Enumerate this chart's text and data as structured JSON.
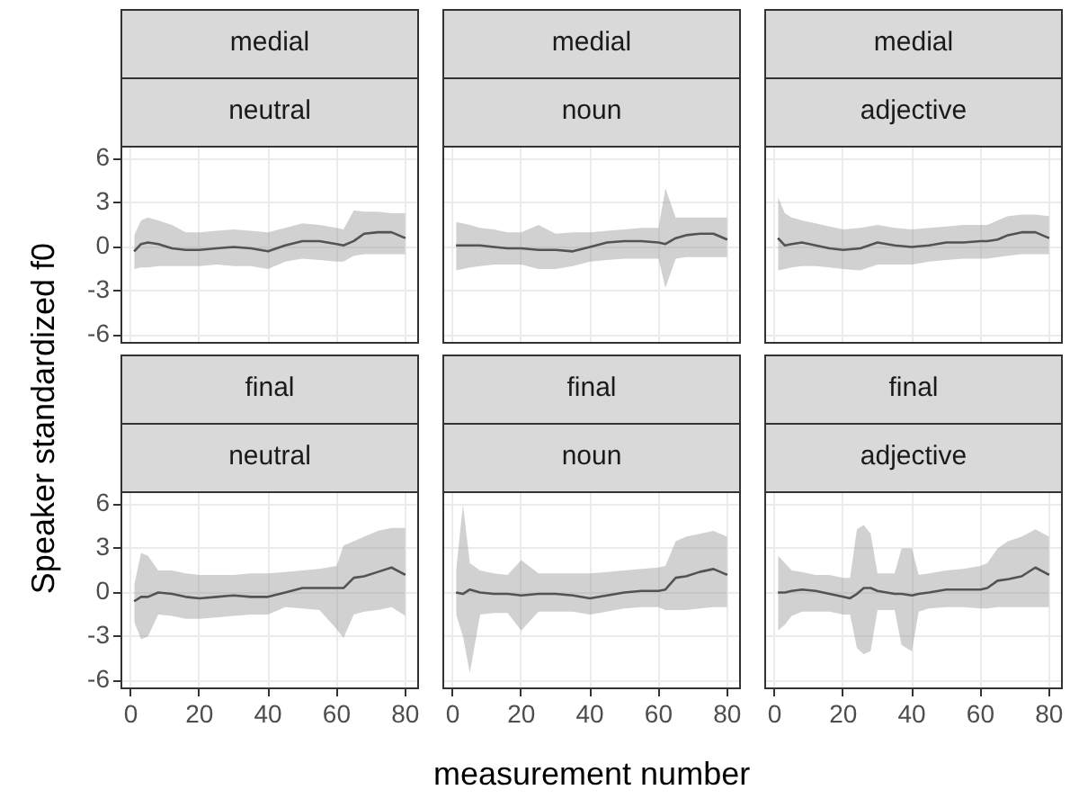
{
  "chart_data": [
    {
      "type": "line",
      "title": "medial",
      "subtitle": "neutral",
      "ylabel": "Speaker standardized f0",
      "x": [
        1,
        3,
        5,
        8,
        12,
        16,
        20,
        25,
        30,
        35,
        40,
        45,
        50,
        55,
        60,
        62,
        65,
        68,
        72,
        76,
        80
      ],
      "xlim": [
        -3,
        84
      ],
      "xticks": [
        0,
        20,
        40,
        60,
        80
      ],
      "ylim": [
        -6.6,
        6.9
      ],
      "yticks": [
        -6,
        -3,
        0,
        3,
        6
      ],
      "grid": true,
      "tick_labels": "y",
      "legend": false,
      "series": [
        {
          "color": "#1a1a1a",
          "values": [
            -0.3,
            0.2,
            0.3,
            0.2,
            -0.1,
            -0.2,
            -0.2,
            -0.1,
            0.0,
            -0.1,
            -0.3,
            0.1,
            0.4,
            0.4,
            0.2,
            0.1,
            0.4,
            0.9,
            1.0,
            1.0,
            0.6
          ],
          "upper": [
            0.8,
            1.8,
            2.0,
            1.8,
            1.5,
            1.0,
            1.0,
            1.1,
            1.2,
            1.1,
            1.0,
            1.3,
            1.6,
            1.5,
            1.3,
            1.2,
            2.5,
            2.4,
            2.4,
            2.3,
            2.3
          ],
          "lower": [
            -1.5,
            -1.4,
            -1.4,
            -1.3,
            -1.3,
            -1.3,
            -1.3,
            -1.2,
            -1.3,
            -1.3,
            -1.5,
            -1.0,
            -0.8,
            -0.9,
            -1.0,
            -1.0,
            -0.6,
            -0.5,
            -0.5,
            -0.5,
            -0.5
          ]
        }
      ]
    },
    {
      "type": "line",
      "title": "medial",
      "subtitle": "noun",
      "x": [
        1,
        3,
        5,
        8,
        12,
        16,
        20,
        25,
        30,
        35,
        40,
        45,
        50,
        55,
        60,
        62,
        65,
        68,
        72,
        76,
        80
      ],
      "xlim": [
        -3,
        84
      ],
      "xticks": [
        0,
        20,
        40,
        60,
        80
      ],
      "ylim": [
        -6.6,
        6.9
      ],
      "yticks": [
        -6,
        -3,
        0,
        3,
        6
      ],
      "grid": true,
      "tick_labels": false,
      "legend": false,
      "series": [
        {
          "color": "#1a1a1a",
          "values": [
            0.1,
            0.1,
            0.1,
            0.1,
            0.0,
            -0.1,
            -0.1,
            -0.2,
            -0.2,
            -0.3,
            0.0,
            0.3,
            0.4,
            0.4,
            0.3,
            0.2,
            0.6,
            0.8,
            0.9,
            0.9,
            0.5
          ],
          "upper": [
            1.7,
            1.6,
            1.5,
            1.3,
            1.2,
            1.0,
            1.0,
            1.5,
            0.9,
            1.0,
            1.0,
            1.1,
            1.2,
            1.3,
            1.3,
            4.0,
            2.0,
            2.0,
            2.0,
            2.0,
            2.0
          ],
          "lower": [
            -1.6,
            -1.5,
            -1.4,
            -1.3,
            -1.2,
            -1.2,
            -1.2,
            -1.5,
            -1.5,
            -1.3,
            -1.0,
            -0.9,
            -0.8,
            -0.8,
            -0.8,
            -2.8,
            -0.8,
            -0.7,
            -0.7,
            -0.7,
            -0.7
          ]
        }
      ]
    },
    {
      "type": "line",
      "title": "medial",
      "subtitle": "adjective",
      "x": [
        1,
        3,
        5,
        8,
        12,
        16,
        20,
        25,
        30,
        35,
        40,
        45,
        50,
        55,
        60,
        62,
        65,
        68,
        72,
        76,
        80
      ],
      "xlim": [
        -3,
        84
      ],
      "xticks": [
        0,
        20,
        40,
        60,
        80
      ],
      "ylim": [
        -6.6,
        6.9
      ],
      "yticks": [
        -6,
        -3,
        0,
        3,
        6
      ],
      "grid": true,
      "tick_labels": false,
      "legend": false,
      "series": [
        {
          "color": "#1a1a1a",
          "values": [
            0.6,
            0.1,
            0.2,
            0.3,
            0.1,
            -0.1,
            -0.2,
            -0.1,
            0.3,
            0.1,
            0.0,
            0.1,
            0.3,
            0.3,
            0.4,
            0.4,
            0.5,
            0.8,
            1.0,
            1.0,
            0.6
          ],
          "upper": [
            3.4,
            2.3,
            2.0,
            1.8,
            1.6,
            1.4,
            1.2,
            1.3,
            1.5,
            1.3,
            1.2,
            1.3,
            1.4,
            1.5,
            1.5,
            1.5,
            1.8,
            2.1,
            2.2,
            2.2,
            2.1
          ],
          "lower": [
            -1.6,
            -1.5,
            -1.4,
            -1.3,
            -1.3,
            -1.4,
            -1.5,
            -1.6,
            -1.2,
            -1.2,
            -1.2,
            -1.0,
            -0.9,
            -0.8,
            -0.8,
            -0.8,
            -0.7,
            -0.6,
            -0.5,
            -0.5,
            -0.5
          ]
        }
      ]
    },
    {
      "type": "line",
      "title": "final",
      "subtitle": "neutral",
      "x": [
        1,
        3,
        5,
        8,
        12,
        16,
        20,
        25,
        30,
        35,
        40,
        45,
        50,
        55,
        60,
        62,
        65,
        68,
        72,
        76,
        80
      ],
      "xlim": [
        -3,
        84
      ],
      "xticks": [
        0,
        20,
        40,
        60,
        80
      ],
      "ylim": [
        -6.6,
        6.9
      ],
      "yticks": [
        -6,
        -3,
        0,
        3,
        6
      ],
      "grid": true,
      "legend": false,
      "series": [
        {
          "color": "#1a1a1a",
          "values": [
            -0.6,
            -0.3,
            -0.3,
            0.0,
            -0.1,
            -0.3,
            -0.4,
            -0.3,
            -0.2,
            -0.3,
            -0.3,
            0.0,
            0.3,
            0.3,
            0.3,
            0.3,
            1.0,
            1.1,
            1.4,
            1.7,
            1.2
          ],
          "upper": [
            0.5,
            2.7,
            2.5,
            1.5,
            1.5,
            1.3,
            1.2,
            1.2,
            1.2,
            1.3,
            1.3,
            1.4,
            1.5,
            1.6,
            1.8,
            3.2,
            3.5,
            3.8,
            4.2,
            4.4,
            4.4
          ],
          "lower": [
            -2.0,
            -3.2,
            -3.0,
            -1.5,
            -1.6,
            -1.8,
            -1.8,
            -1.7,
            -1.6,
            -1.5,
            -1.5,
            -1.0,
            -1.1,
            -1.2,
            -2.5,
            -3.1,
            -1.5,
            -1.3,
            -1.2,
            -1.0,
            -1.6
          ]
        }
      ]
    },
    {
      "type": "line",
      "title": "final",
      "subtitle": "noun",
      "xlabel": "measurement number",
      "x": [
        1,
        3,
        5,
        8,
        12,
        16,
        20,
        25,
        30,
        35,
        40,
        45,
        50,
        55,
        60,
        62,
        65,
        68,
        72,
        76,
        80
      ],
      "xlim": [
        -3,
        84
      ],
      "xticks": [
        0,
        20,
        40,
        60,
        80
      ],
      "ylim": [
        -6.6,
        6.9
      ],
      "yticks": [
        -6,
        -3,
        0,
        3,
        6
      ],
      "grid": true,
      "tick_labels": "x",
      "legend": false,
      "series": [
        {
          "color": "#1a1a1a",
          "values": [
            0.0,
            -0.1,
            0.2,
            0.0,
            -0.1,
            -0.1,
            -0.2,
            -0.1,
            -0.1,
            -0.2,
            -0.4,
            -0.2,
            0.0,
            0.1,
            0.1,
            0.2,
            1.0,
            1.1,
            1.4,
            1.6,
            1.2
          ],
          "upper": [
            1.5,
            6.0,
            2.0,
            1.5,
            1.3,
            1.2,
            2.2,
            1.3,
            1.3,
            1.3,
            1.3,
            1.4,
            1.5,
            1.6,
            1.7,
            1.8,
            3.5,
            3.8,
            4.0,
            4.2,
            3.8
          ],
          "lower": [
            -1.5,
            -3.0,
            -5.5,
            -1.5,
            -1.4,
            -1.4,
            -2.6,
            -1.3,
            -1.3,
            -1.3,
            -1.5,
            -1.3,
            -1.1,
            -1.0,
            -1.0,
            -1.2,
            -1.2,
            -1.2,
            -1.1,
            -1.0,
            -1.0
          ]
        }
      ]
    },
    {
      "type": "line",
      "title": "final",
      "subtitle": "adjective",
      "x": [
        1,
        3,
        5,
        8,
        12,
        16,
        20,
        22,
        24,
        26,
        28,
        30,
        35,
        37,
        40,
        42,
        45,
        50,
        55,
        60,
        62,
        65,
        68,
        72,
        76,
        80
      ],
      "xlim": [
        -3,
        84
      ],
      "xticks": [
        0,
        20,
        40,
        60,
        80
      ],
      "ylim": [
        -6.6,
        6.9
      ],
      "yticks": [
        -6,
        -3,
        0,
        3,
        6
      ],
      "grid": true,
      "tick_labels": "x",
      "legend": false,
      "series": [
        {
          "color": "#1a1a1a",
          "values": [
            0.0,
            0.0,
            0.1,
            0.2,
            0.1,
            -0.1,
            -0.3,
            -0.4,
            -0.1,
            0.3,
            0.3,
            0.1,
            -0.1,
            -0.1,
            -0.2,
            -0.1,
            0.0,
            0.2,
            0.2,
            0.2,
            0.3,
            0.8,
            0.9,
            1.1,
            1.7,
            1.2
          ],
          "upper": [
            2.5,
            2.0,
            1.5,
            1.4,
            1.2,
            1.2,
            1.0,
            1.0,
            4.3,
            4.6,
            4.0,
            1.3,
            1.3,
            3.0,
            3.0,
            1.2,
            1.3,
            1.5,
            1.6,
            1.8,
            2.0,
            3.0,
            3.5,
            3.8,
            4.3,
            3.8
          ],
          "lower": [
            -2.6,
            -2.2,
            -1.6,
            -1.3,
            -1.3,
            -1.3,
            -1.5,
            -1.5,
            -3.8,
            -4.2,
            -4.0,
            -1.2,
            -1.2,
            -3.6,
            -4.0,
            -1.3,
            -1.1,
            -1.0,
            -1.0,
            -1.1,
            -1.1,
            -1.0,
            -1.0,
            -1.0,
            -1.0,
            -1.0
          ]
        }
      ]
    }
  ]
}
